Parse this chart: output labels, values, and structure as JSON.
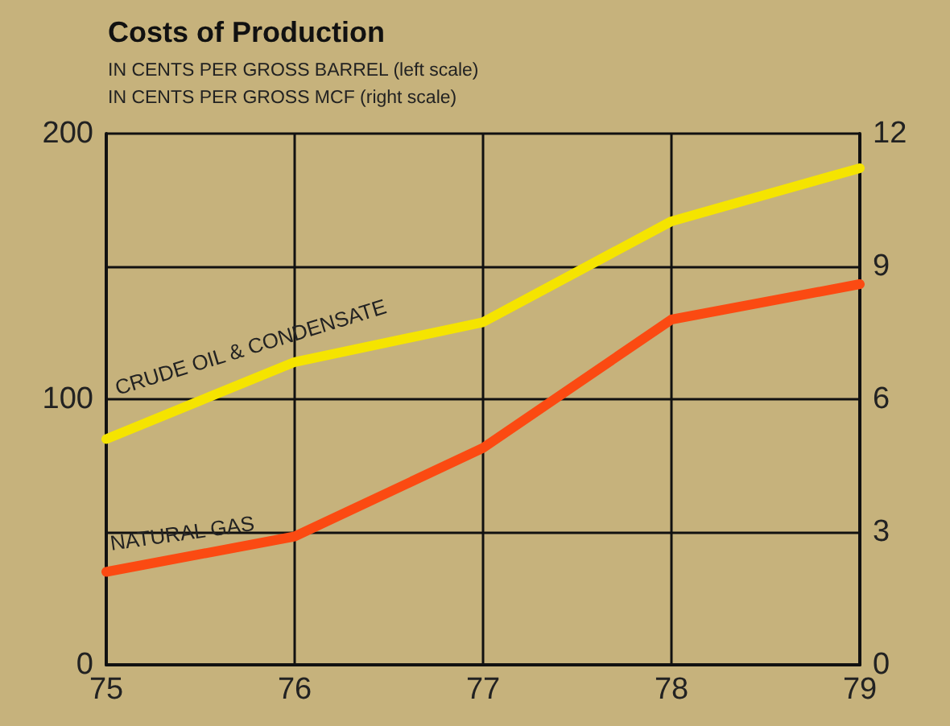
{
  "chart_data": {
    "type": "line",
    "title": "Costs of Production",
    "subtitle": "IN CENTS PER GROSS BARREL (left scale)",
    "annotations": [
      "IN CENTS PER GROSS MCF (right scale)"
    ],
    "x": [
      75,
      76,
      77,
      78,
      79
    ],
    "xlim": [
      75,
      79
    ],
    "xticks": [
      75,
      76,
      77,
      78,
      79
    ],
    "ylim": [
      0,
      200
    ],
    "yticks": [
      0,
      {
        "value": 50,
        "label": null
      },
      100,
      {
        "value": 150,
        "label": null
      },
      200
    ],
    "y2lim": [
      0,
      12
    ],
    "y2ticks": [
      0,
      3,
      6,
      9,
      12
    ],
    "series": [
      {
        "name": "CRUDE OIL & CONDENSATE",
        "color": "#f5e400",
        "values": [
          85,
          114,
          129,
          167,
          187
        ]
      },
      {
        "name": "NATURAL GAS",
        "color": "#fb4a12",
        "values": [
          2.1,
          2.9,
          4.9,
          7.8,
          8.6
        ],
        "axis": "y2"
      }
    ],
    "grid": true,
    "legend": false,
    "marker": "none",
    "line_style": "solid"
  }
}
